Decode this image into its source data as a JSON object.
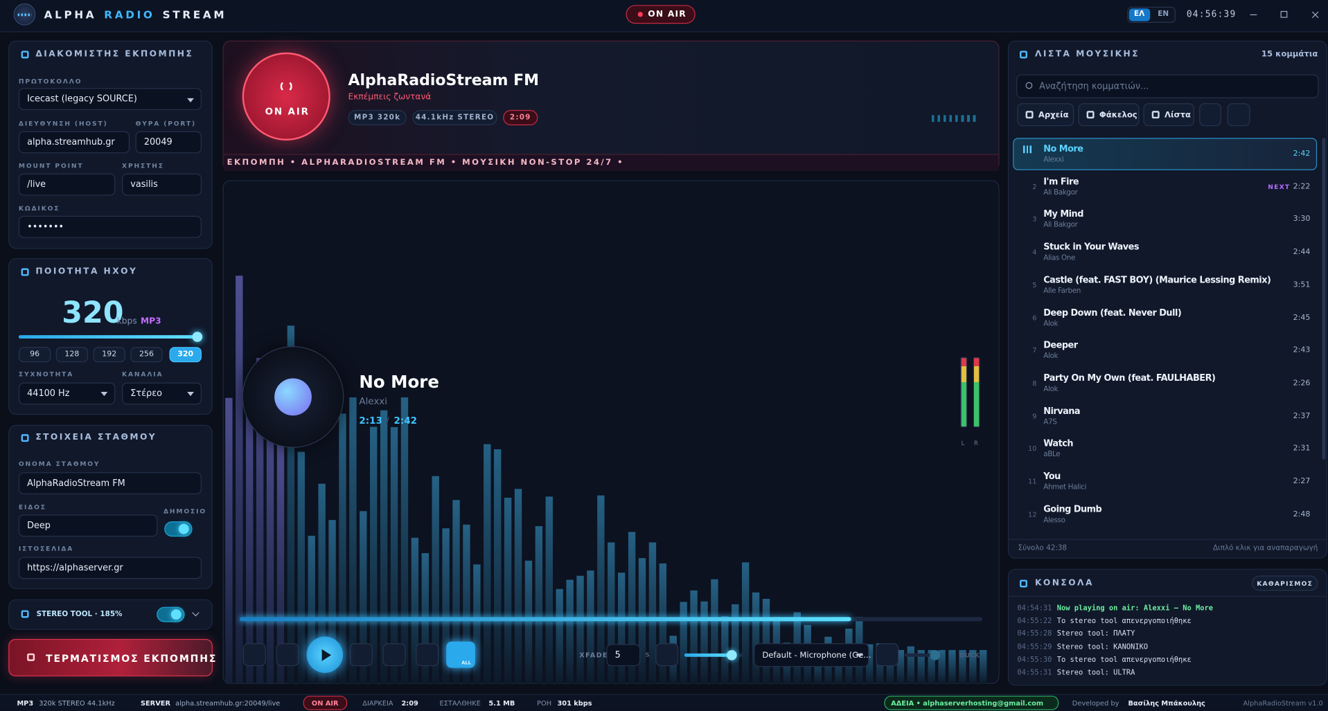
{
  "header": {
    "logo": [
      "ALPHA",
      "RADIO",
      "STREAM"
    ],
    "on_air": "ON AIR",
    "languages": [
      "ΕΛ",
      "EN"
    ],
    "clock": "04:56:39"
  },
  "server": {
    "title": "ΔΙΑΚΟΜΙΣΤΗΣ ΕΚΠΟΜΠΗΣ",
    "fields": [
      {
        "label": "ΠΡΩΤΟΚΟΛΛΟ",
        "value": "Icecast (legacy SOURCE)"
      },
      {
        "label": "ΔΙΕΥΘΥΝΣΗ (HOST)",
        "value": "alpha.streamhub.gr"
      },
      {
        "label": "ΘΥΡΑ (PORT)",
        "value": "20049"
      },
      {
        "label": "MOUNT POINT",
        "value": "/live"
      },
      {
        "label": "ΧΡΗΣΤΗΣ",
        "value": "vasilis"
      },
      {
        "label": "ΚΩΔΙΚΟΣ",
        "value": "•••••••"
      }
    ]
  },
  "quality": {
    "title": "ΠΟΙΟΤΗΤΑ ΗΧΟΥ",
    "bitrate": "320",
    "unit": "kbps",
    "format": "MP3",
    "presets": [
      "96",
      "128",
      "192",
      "256",
      "320"
    ],
    "fields": [
      {
        "label": "ΣΥΧΝΟΤΗΤΑ",
        "value": "44100 Hz"
      },
      {
        "label": "ΚΑΝΑΛΙΑ",
        "value": "Στέρεο"
      }
    ]
  },
  "station": {
    "title": "ΣΤΟΙΧΕΙΑ ΣΤΑΘΜΟΥ",
    "name_label": "ΟΝΟΜΑ ΣΤΑΘΜΟΥ",
    "name": "AlphaRadioStream FM",
    "genre_label": "ΕΙΔΟΣ",
    "genre": "Deep",
    "public_label": "ΔΗΜΟΣΙΟ",
    "website_label": "ΙΣΤΟΣΕΛΙΔΑ",
    "website": "https://alphaserver.gr"
  },
  "stereo_tool": "STEREO TOOL · 185%",
  "stop_button": "ΤΕΡΜΑΤΙΣΜΟΣ ΕΚΠΟΜΠΗΣ",
  "broadcast": {
    "badge": "ON AIR",
    "station": "AlphaRadioStream FM",
    "status": "Εκπέμπεις ζωντανά",
    "chips": [
      "MP3 320k",
      "44.1kHz STEREO",
      "2:09"
    ],
    "ticker": "ΕΚΠΟΜΠΗ • ALPHARADIOSTREAM FM • ΜΟΥΣΙΚΗ NON-STOP 24/7 •"
  },
  "player": {
    "title": "No More",
    "artist": "Alexxi",
    "elapsed": "2:13",
    "separator": "/",
    "duration": "2:42",
    "vu": [
      "L",
      "R"
    ],
    "xfade_label": "XFADE",
    "xfade": "5",
    "xfade_unit": "s",
    "repeat": "ALL",
    "device": "Default - Microphone (Ge...",
    "duck": "DUCK"
  },
  "playlist": {
    "title": "ΛΙΣΤΑ ΜΟΥΣΙΚΗΣ",
    "count": "15 κομμάτια",
    "search": "Αναζήτηση κομματιών...",
    "buttons": [
      "Αρχεία",
      "Φάκελος",
      "Λίστα"
    ],
    "next": "NEXT",
    "tracks": [
      {
        "title": "No More",
        "artist": "Alexxi",
        "duration": "2:42"
      },
      {
        "number": 2,
        "title": "I'm Fire",
        "artist": "Ali Bakgor",
        "duration": "2:22"
      },
      {
        "number": 3,
        "title": "My Mind",
        "artist": "Ali Bakgor",
        "duration": "3:30"
      },
      {
        "number": 4,
        "title": "Stuck in Your Waves",
        "artist": "Alias One",
        "duration": "2:44"
      },
      {
        "number": 5,
        "title": "Castle (feat. FAST BOY) (Maurice Lessing Remix)",
        "artist": "Alle Farben",
        "duration": "3:51"
      },
      {
        "number": 6,
        "title": "Deep Down (feat. Never Dull)",
        "artist": "Alok",
        "duration": "2:45"
      },
      {
        "number": 7,
        "title": "Deeper",
        "artist": "Alok",
        "duration": "2:43"
      },
      {
        "number": 8,
        "title": "Party On My Own (feat. FAULHABER)",
        "artist": "Alok",
        "duration": "2:26"
      },
      {
        "number": 9,
        "title": "Nirvana",
        "artist": "A7S",
        "duration": "2:37"
      },
      {
        "number": 10,
        "title": "Watch",
        "artist": "aBLe",
        "duration": "2:31"
      },
      {
        "number": 11,
        "title": "You",
        "artist": "Ahmet Halici",
        "duration": "2:27"
      },
      {
        "number": 12,
        "title": "Going Dumb",
        "artist": "Alesso",
        "duration": "2:48"
      }
    ],
    "total": "Σύνολο 42:38",
    "hint": "Διπλό κλικ για αναπαραγωγή"
  },
  "console": {
    "title": "ΚΟΝΣΟΛΑ",
    "clear": "ΚΑΘΑΡΙΣΜΟΣ",
    "lines": [
      {
        "time": "04:54:31",
        "text": "Now playing on air: Alexxi — No More"
      },
      {
        "time": "04:55:22",
        "text": "To stereo tool απενεργοποιήθηκε"
      },
      {
        "time": "04:55:28",
        "text": "Stereo tool: ΠΛΑΤΥ"
      },
      {
        "time": "04:55:29",
        "text": "Stereo tool: ΚΑΝΟΝΙΚΟ"
      },
      {
        "time": "04:55:30",
        "text": "To stereo tool απενεργοποιήθηκε"
      },
      {
        "time": "04:55:31",
        "text": "Stereo tool: ULTRA"
      }
    ]
  },
  "status": {
    "left": [
      {
        "label": "MP3",
        "value": "320k STEREO 44.1kHz"
      },
      {
        "label": "SERVER",
        "value": "alpha.streamhub.gr:20049/live"
      }
    ],
    "on_air": "ON AIR",
    "right": [
      {
        "label": "ΔΙΑΡΚΕΙΑ",
        "value": "2:09"
      },
      {
        "label": "ΕΣΤΑΛΘΗΚΕ",
        "value": "5.1 MB"
      },
      {
        "label": "ΡΟΗ",
        "value": "301 kbps"
      }
    ],
    "license": "ΑΔΕΙΑ • alphaserverhosting@gmail.com",
    "dev_label": "Developed by",
    "developer": "Βασίλης Μπάκουλης",
    "version": "AlphaRadioStream v1.0"
  }
}
